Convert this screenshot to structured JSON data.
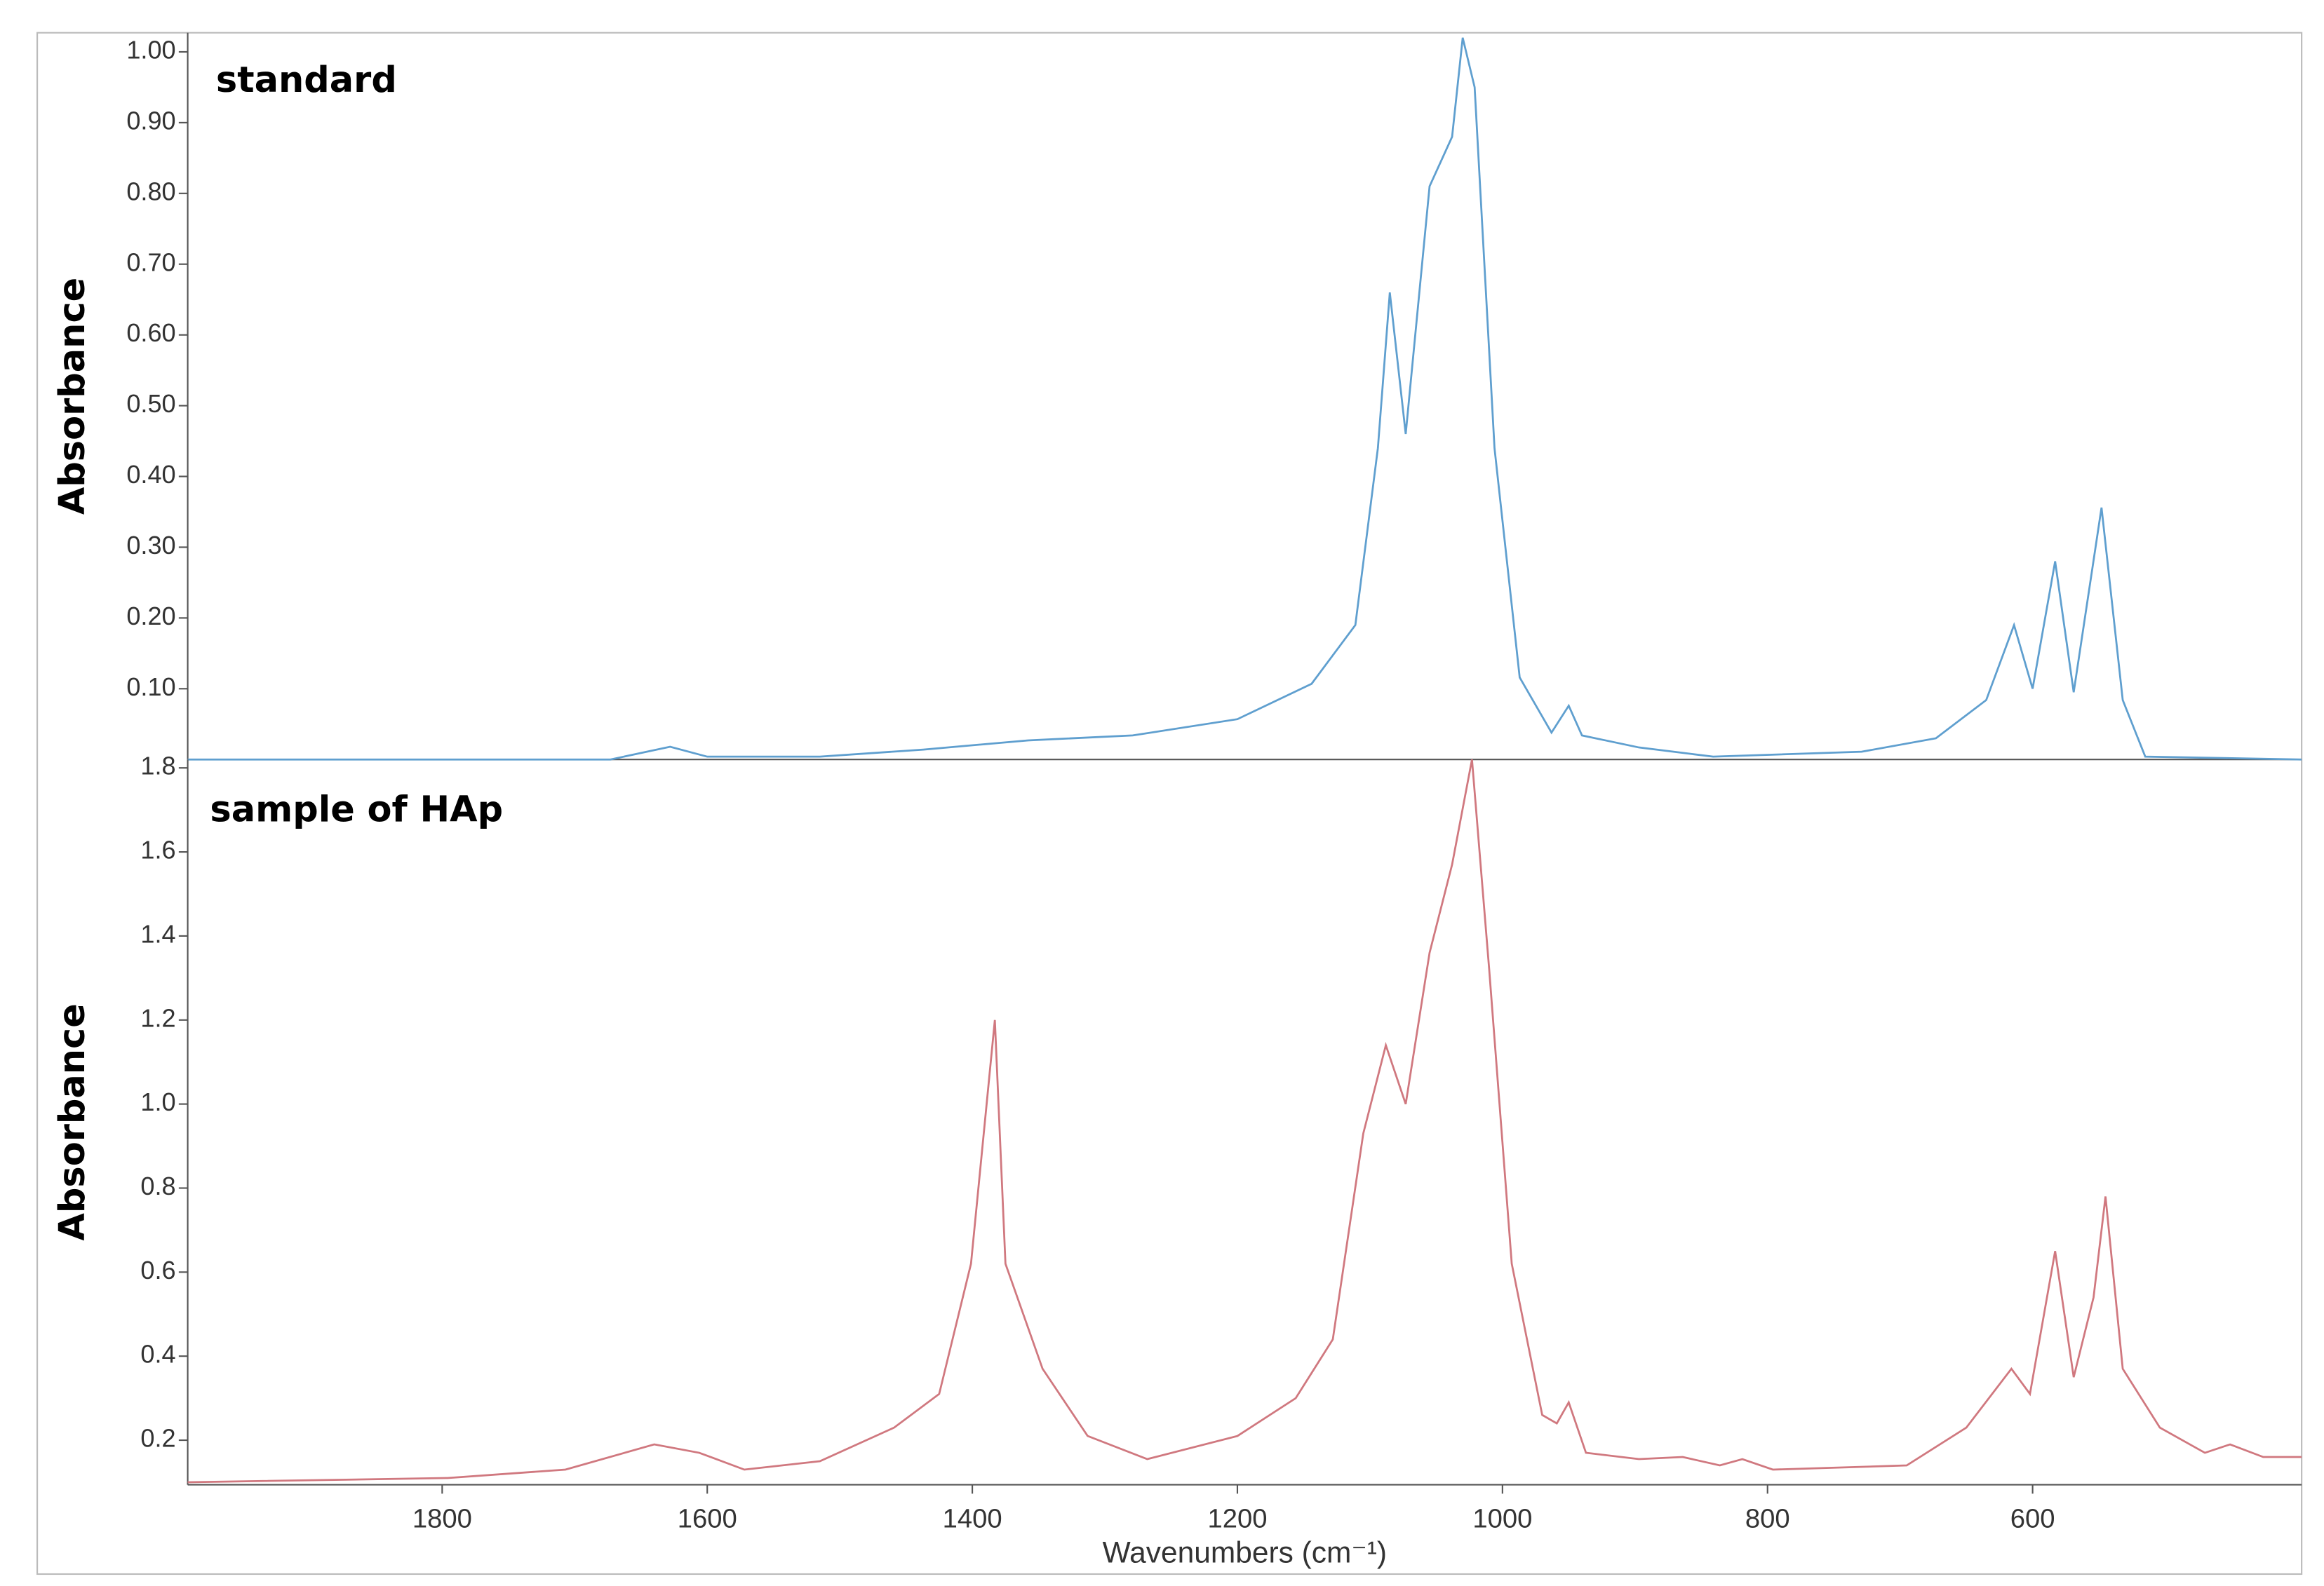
{
  "chart_data": [
    {
      "type": "line",
      "title": "standard",
      "ylabel": "Absorbance",
      "color": "#5f9fcf",
      "xlim": [
        1992,
        397
      ],
      "ylim": [
        0,
        1.027
      ],
      "yticks": [
        {
          "value": 0.1,
          "label": "0.10"
        },
        {
          "value": 0.2,
          "label": "0.20"
        },
        {
          "value": 0.3,
          "label": "0.30"
        },
        {
          "value": 0.4,
          "label": "0.40"
        },
        {
          "value": 0.5,
          "label": "0.50"
        },
        {
          "value": 0.6,
          "label": "0.60"
        },
        {
          "value": 0.7,
          "label": "0.70"
        },
        {
          "value": 0.8,
          "label": "0.80"
        },
        {
          "value": 0.9,
          "label": "0.90"
        },
        {
          "value": 1,
          "label": "1.00"
        }
      ],
      "x": [
        1992,
        1673,
        1628,
        1600,
        1515,
        1437,
        1358,
        1279,
        1200,
        1144,
        1111,
        1094,
        1085,
        1073,
        1055,
        1038,
        1030,
        1021,
        1006,
        987,
        963,
        950,
        940,
        897,
        841,
        729,
        673,
        635,
        614,
        600,
        583,
        569,
        548,
        532,
        515,
        397
      ],
      "values": [
        0,
        0,
        0.018,
        0.004,
        0.004,
        0.014,
        0.027,
        0.034,
        0.057,
        0.107,
        0.19,
        0.44,
        0.66,
        0.46,
        0.81,
        0.88,
        1.02,
        0.95,
        0.44,
        0.116,
        0.038,
        0.076,
        0.034,
        0.017,
        0.004,
        0.011,
        0.03,
        0.084,
        0.19,
        0.1,
        0.28,
        0.095,
        0.356,
        0.084,
        0.004,
        0
      ]
    },
    {
      "type": "line",
      "title": "sample of HAp",
      "ylabel": "Absorbance",
      "xlabel": "Wavenumbers (cm⁻¹)",
      "color": "#d0787f",
      "xlim": [
        1992,
        397
      ],
      "ylim": [
        0.094,
        1.82
      ],
      "xticks": [
        1800,
        1600,
        1400,
        1200,
        1000,
        800,
        600
      ],
      "yticks": [
        0.2,
        0.4,
        0.6,
        0.8,
        {
          "value": 1,
          "label": "1.0"
        },
        1.2,
        1.4,
        1.6,
        1.8
      ],
      "x": [
        1992,
        1796,
        1707,
        1640,
        1606,
        1572,
        1515,
        1459,
        1425,
        1401,
        1383,
        1375,
        1347,
        1313,
        1268,
        1200,
        1156,
        1128,
        1105,
        1088,
        1073,
        1055,
        1038,
        1023,
        1010,
        993,
        970,
        959,
        950,
        937,
        897,
        864,
        836,
        819,
        796,
        695,
        650,
        616,
        602,
        583,
        569,
        554,
        545,
        532,
        504,
        470,
        451,
        426,
        397
      ],
      "values": [
        0.1,
        0.11,
        0.13,
        0.19,
        0.17,
        0.13,
        0.15,
        0.23,
        0.31,
        0.62,
        1.2,
        0.62,
        0.37,
        0.21,
        0.155,
        0.21,
        0.3,
        0.44,
        0.93,
        1.14,
        1.0,
        1.36,
        1.57,
        1.82,
        1.32,
        0.62,
        0.26,
        0.24,
        0.29,
        0.17,
        0.155,
        0.16,
        0.14,
        0.155,
        0.13,
        0.14,
        0.23,
        0.37,
        0.31,
        0.65,
        0.35,
        0.54,
        0.78,
        0.37,
        0.23,
        0.17,
        0.19,
        0.16,
        0.16
      ]
    }
  ]
}
